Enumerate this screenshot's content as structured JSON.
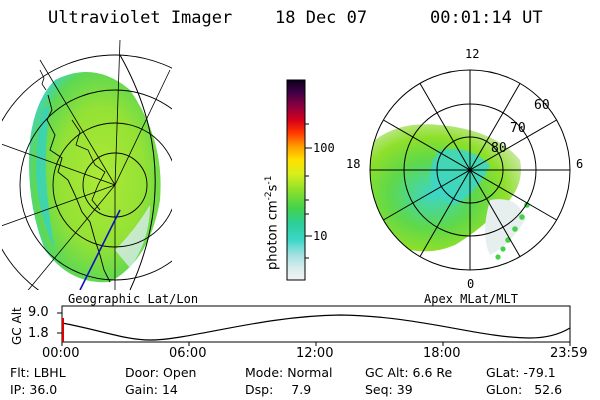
{
  "header": {
    "title": "Ultraviolet Imager",
    "date": "18 Dec 07",
    "time": "00:01:14 UT"
  },
  "left_panel": {
    "caption": "Geographic Lat/Lon"
  },
  "right_panel": {
    "caption": "Apex MLat/MLT",
    "mlt_labels": [
      "12",
      "18",
      "6",
      "0"
    ],
    "lat_labels": [
      "60",
      "70",
      "80"
    ]
  },
  "colorbar": {
    "label_main": "photon cm",
    "label_exp1": "-2",
    "label_mid": "s",
    "label_exp2": "-1",
    "ticks": [
      "100",
      "10"
    ]
  },
  "altitude_plot": {
    "ylabel": "GC Alt",
    "y_ticks": [
      "9.0",
      "1.8"
    ],
    "x_ticks": [
      "00:00",
      "06:00",
      "12:00",
      "18:00",
      "23:59"
    ]
  },
  "footer": {
    "row1": [
      {
        "key": "Flt:",
        "value": "LBHL"
      },
      {
        "key": "Door:",
        "value": "Open"
      },
      {
        "key": "Mode:",
        "value": "Normal"
      },
      {
        "key": "GC Alt:",
        "value": "6.6 Re"
      },
      {
        "key": "GLat:",
        "value": "-79.1"
      }
    ],
    "row2": [
      {
        "key": "IP:",
        "value": "36.0"
      },
      {
        "key": "Gain:",
        "value": "14"
      },
      {
        "key": "Dsp:",
        "value": "7.9"
      },
      {
        "key": "Seq:",
        "value": "39"
      },
      {
        "key": "GLon:",
        "value": "52.6"
      }
    ]
  }
}
